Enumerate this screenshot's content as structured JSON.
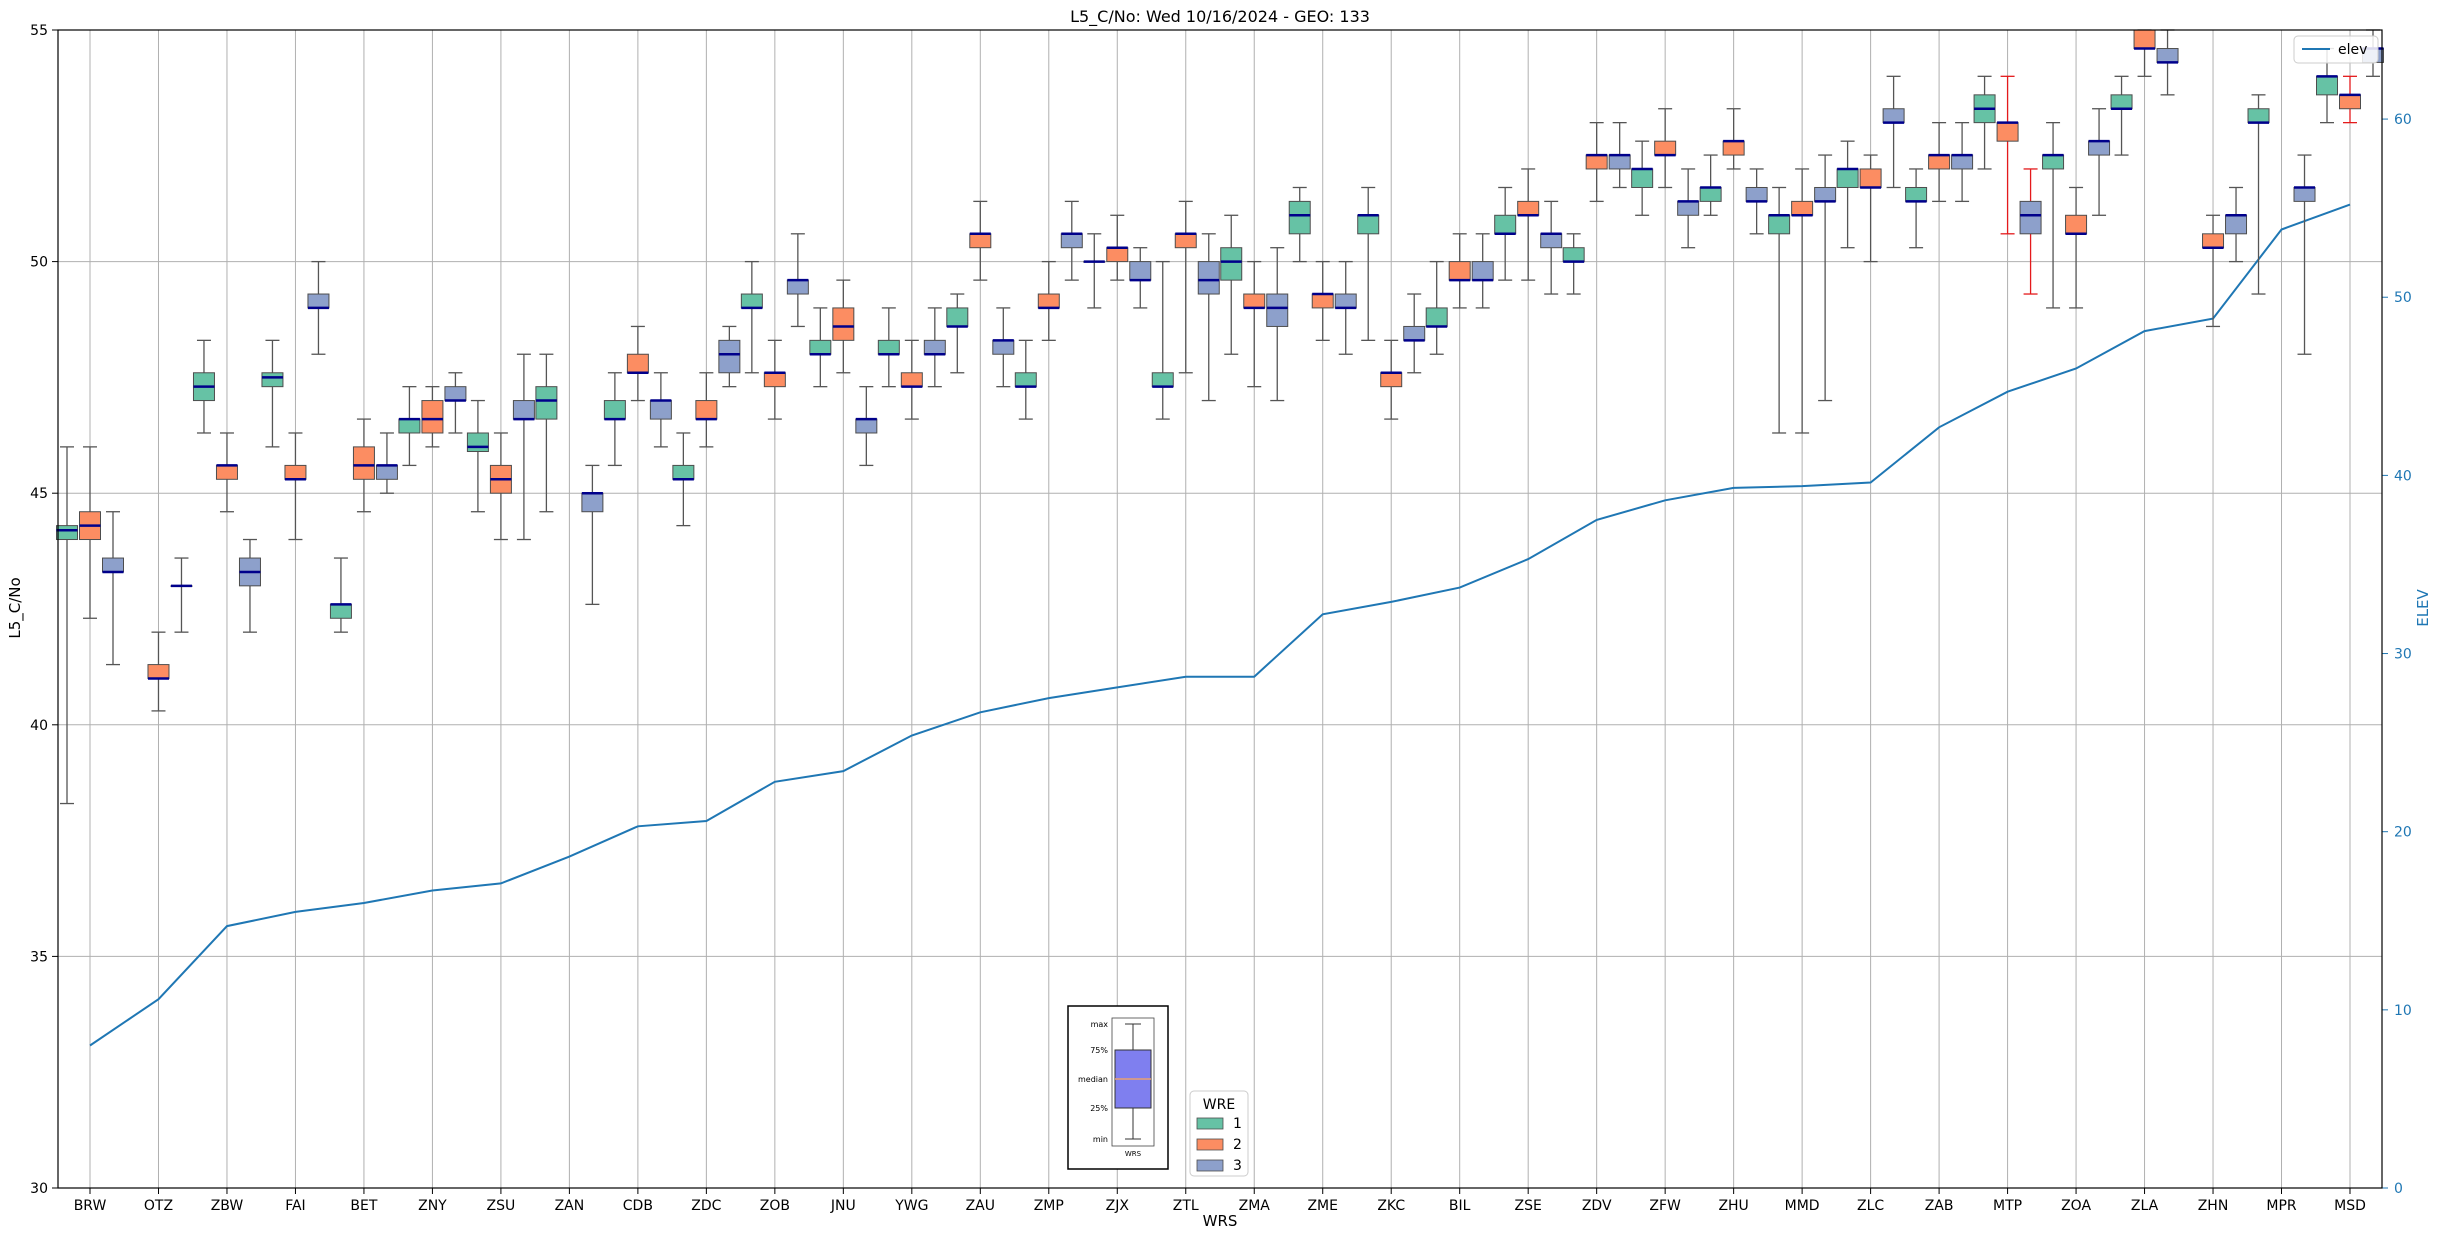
{
  "chart_data": {
    "type": "box",
    "title": "L5_C/No: Wed 10/16/2024 - GEO: 133",
    "xlabel": "WRS",
    "ylabel": "L5_C/No",
    "y2label": "ELEV",
    "ylim": [
      30,
      55
    ],
    "y2lim": [
      0,
      65
    ],
    "yticks": [
      30,
      35,
      40,
      45,
      50,
      55
    ],
    "y2ticks": [
      0,
      10,
      20,
      30,
      40,
      50,
      60
    ],
    "grid": true,
    "colors": {
      "wre1": "#66c2a5",
      "wre2": "#fc8d62",
      "wre3": "#8da0cb",
      "elev_line": "#1f77b4",
      "median": "#00008b",
      "whisker": "#555555",
      "whisker_alert": "#e41a1c",
      "y2_axis": "#1f77b4",
      "inset_box": "#7f7fef",
      "inset_median": "#e8a070"
    },
    "categories": [
      "BRW",
      "OTZ",
      "ZBW",
      "FAI",
      "BET",
      "ZNY",
      "ZSU",
      "ZAN",
      "CDB",
      "ZDC",
      "ZOB",
      "JNU",
      "YWG",
      "ZAU",
      "ZMP",
      "ZJX",
      "ZTL",
      "ZMA",
      "ZME",
      "ZKC",
      "BIL",
      "ZSE",
      "ZDV",
      "ZFW",
      "ZHU",
      "MMD",
      "ZLC",
      "ZAB",
      "MTP",
      "ZOA",
      "ZLA",
      "ZHN",
      "MPR",
      "MSD"
    ],
    "elev": {
      "name": "elev",
      "values": [
        8.0,
        10.6,
        14.7,
        15.5,
        16.0,
        16.7,
        17.1,
        18.6,
        20.3,
        20.6,
        22.8,
        23.4,
        25.4,
        26.7,
        27.5,
        28.1,
        28.7,
        28.7,
        32.2,
        32.9,
        33.7,
        35.3,
        37.5,
        38.6,
        39.3,
        39.4,
        39.6,
        42.7,
        44.7,
        46.0,
        48.1,
        48.8,
        53.8,
        55.2
      ]
    },
    "series": [
      {
        "name": "1",
        "boxes": [
          {
            "cat": "BRW",
            "min": 38.3,
            "q1": 44.0,
            "median": 44.2,
            "q3": 44.3,
            "max": 46.0
          },
          {
            "cat": "ZBW",
            "min": 46.3,
            "q1": 47.0,
            "median": 47.3,
            "q3": 47.6,
            "max": 48.3
          },
          {
            "cat": "FAI",
            "min": 46.0,
            "q1": 47.3,
            "median": 47.5,
            "q3": 47.6,
            "max": 48.3
          },
          {
            "cat": "BET",
            "min": 42.0,
            "q1": 42.3,
            "median": 42.6,
            "q3": 42.6,
            "max": 43.6
          },
          {
            "cat": "ZNY",
            "min": 45.6,
            "q1": 46.3,
            "median": 46.6,
            "q3": 46.6,
            "max": 47.3
          },
          {
            "cat": "ZSU",
            "min": 44.6,
            "q1": 45.9,
            "median": 46.0,
            "q3": 46.3,
            "max": 47.0
          },
          {
            "cat": "ZAN",
            "min": 44.6,
            "q1": 46.6,
            "median": 47.0,
            "q3": 47.3,
            "max": 48.0
          },
          {
            "cat": "CDB",
            "min": 45.6,
            "q1": 46.6,
            "median": 46.6,
            "q3": 47.0,
            "max": 47.6
          },
          {
            "cat": "ZDC",
            "min": 44.3,
            "q1": 45.3,
            "median": 45.3,
            "q3": 45.6,
            "max": 46.3
          },
          {
            "cat": "ZOB",
            "min": 47.6,
            "q1": 49.0,
            "median": 49.0,
            "q3": 49.3,
            "max": 50.0
          },
          {
            "cat": "JNU",
            "min": 47.3,
            "q1": 48.0,
            "median": 48.0,
            "q3": 48.3,
            "max": 49.0
          },
          {
            "cat": "YWG",
            "min": 47.3,
            "q1": 48.0,
            "median": 48.0,
            "q3": 48.3,
            "max": 49.0
          },
          {
            "cat": "ZAU",
            "min": 47.6,
            "q1": 48.6,
            "median": 48.6,
            "q3": 49.0,
            "max": 49.3
          },
          {
            "cat": "ZMP",
            "min": 46.6,
            "q1": 47.3,
            "median": 47.3,
            "q3": 47.6,
            "max": 48.3
          },
          {
            "cat": "ZJX",
            "min": 49.0,
            "q1": 50.0,
            "median": 50.0,
            "q3": 50.0,
            "max": 50.6
          },
          {
            "cat": "ZTL",
            "min": 46.6,
            "q1": 47.3,
            "median": 47.3,
            "q3": 47.6,
            "max": 50.0
          },
          {
            "cat": "ZMA",
            "min": 48.0,
            "q1": 49.6,
            "median": 50.0,
            "q3": 50.3,
            "max": 51.0
          },
          {
            "cat": "ZME",
            "min": 50.0,
            "q1": 50.6,
            "median": 51.0,
            "q3": 51.3,
            "max": 51.6
          },
          {
            "cat": "ZKC",
            "min": 48.3,
            "q1": 50.6,
            "median": 51.0,
            "q3": 51.0,
            "max": 51.6
          },
          {
            "cat": "BIL",
            "min": 48.0,
            "q1": 48.6,
            "median": 48.6,
            "q3": 49.0,
            "max": 50.0
          },
          {
            "cat": "ZSE",
            "min": 49.6,
            "q1": 50.6,
            "median": 50.6,
            "q3": 51.0,
            "max": 51.6
          },
          {
            "cat": "ZDV",
            "min": 49.3,
            "q1": 50.0,
            "median": 50.0,
            "q3": 50.3,
            "max": 50.6
          },
          {
            "cat": "ZFW",
            "min": 51.0,
            "q1": 51.6,
            "median": 52.0,
            "q3": 52.0,
            "max": 52.6
          },
          {
            "cat": "ZHU",
            "min": 51.0,
            "q1": 51.3,
            "median": 51.6,
            "q3": 51.6,
            "max": 52.3
          },
          {
            "cat": "MMD",
            "min": 46.3,
            "q1": 50.6,
            "median": 51.0,
            "q3": 51.0,
            "max": 51.6
          },
          {
            "cat": "ZLC",
            "min": 50.3,
            "q1": 51.6,
            "median": 52.0,
            "q3": 52.0,
            "max": 52.6
          },
          {
            "cat": "ZAB",
            "min": 50.3,
            "q1": 51.3,
            "median": 51.3,
            "q3": 51.6,
            "max": 52.0
          },
          {
            "cat": "MTP",
            "min": 52.0,
            "q1": 53.0,
            "median": 53.3,
            "q3": 53.6,
            "max": 54.0
          },
          {
            "cat": "ZOA",
            "min": 49.0,
            "q1": 52.0,
            "median": 52.3,
            "q3": 52.3,
            "max": 53.0
          },
          {
            "cat": "ZLA",
            "min": 52.3,
            "q1": 53.3,
            "median": 53.3,
            "q3": 53.6,
            "max": 54.0
          },
          {
            "cat": "MPR",
            "min": 49.3,
            "q1": 53.0,
            "median": 53.0,
            "q3": 53.3,
            "max": 53.6
          },
          {
            "cat": "MSD",
            "min": 53.0,
            "q1": 53.6,
            "median": 54.0,
            "q3": 54.0,
            "max": 54.6
          }
        ]
      },
      {
        "name": "2",
        "boxes": [
          {
            "cat": "BRW",
            "min": 42.3,
            "q1": 44.0,
            "median": 44.3,
            "q3": 44.6,
            "max": 46.0
          },
          {
            "cat": "OTZ",
            "min": 40.3,
            "q1": 41.0,
            "median": 41.0,
            "q3": 41.3,
            "max": 42.0
          },
          {
            "cat": "ZBW",
            "min": 44.6,
            "q1": 45.3,
            "median": 45.6,
            "q3": 45.6,
            "max": 46.3
          },
          {
            "cat": "FAI",
            "min": 44.0,
            "q1": 45.3,
            "median": 45.3,
            "q3": 45.6,
            "max": 46.3
          },
          {
            "cat": "BET",
            "min": 44.6,
            "q1": 45.3,
            "median": 45.6,
            "q3": 46.0,
            "max": 46.6
          },
          {
            "cat": "ZNY",
            "min": 46.0,
            "q1": 46.3,
            "median": 46.6,
            "q3": 47.0,
            "max": 47.3
          },
          {
            "cat": "ZSU",
            "min": 44.0,
            "q1": 45.0,
            "median": 45.3,
            "q3": 45.6,
            "max": 46.3
          },
          {
            "cat": "CDB",
            "min": 47.0,
            "q1": 47.6,
            "median": 47.6,
            "q3": 48.0,
            "max": 48.6
          },
          {
            "cat": "ZDC",
            "min": 46.0,
            "q1": 46.6,
            "median": 46.6,
            "q3": 47.0,
            "max": 47.6
          },
          {
            "cat": "ZOB",
            "min": 46.6,
            "q1": 47.3,
            "median": 47.6,
            "q3": 47.6,
            "max": 48.3
          },
          {
            "cat": "JNU",
            "min": 47.6,
            "q1": 48.3,
            "median": 48.6,
            "q3": 49.0,
            "max": 49.6
          },
          {
            "cat": "YWG",
            "min": 46.6,
            "q1": 47.3,
            "median": 47.3,
            "q3": 47.6,
            "max": 48.3
          },
          {
            "cat": "ZAU",
            "min": 49.6,
            "q1": 50.3,
            "median": 50.6,
            "q3": 50.6,
            "max": 51.3
          },
          {
            "cat": "ZMP",
            "min": 48.3,
            "q1": 49.0,
            "median": 49.0,
            "q3": 49.3,
            "max": 50.0
          },
          {
            "cat": "ZJX",
            "min": 49.6,
            "q1": 50.0,
            "median": 50.3,
            "q3": 50.3,
            "max": 51.0
          },
          {
            "cat": "ZTL",
            "min": 47.6,
            "q1": 50.3,
            "median": 50.6,
            "q3": 50.6,
            "max": 51.3
          },
          {
            "cat": "ZMA",
            "min": 47.3,
            "q1": 49.0,
            "median": 49.0,
            "q3": 49.3,
            "max": 50.0
          },
          {
            "cat": "ZME",
            "min": 48.3,
            "q1": 49.0,
            "median": 49.3,
            "q3": 49.3,
            "max": 50.0
          },
          {
            "cat": "ZKC",
            "min": 46.6,
            "q1": 47.3,
            "median": 47.6,
            "q3": 47.6,
            "max": 48.3
          },
          {
            "cat": "BIL",
            "min": 49.0,
            "q1": 49.6,
            "median": 49.6,
            "q3": 50.0,
            "max": 50.6
          },
          {
            "cat": "ZSE",
            "min": 49.6,
            "q1": 51.0,
            "median": 51.0,
            "q3": 51.3,
            "max": 52.0
          },
          {
            "cat": "ZDV",
            "min": 51.3,
            "q1": 52.0,
            "median": 52.3,
            "q3": 52.3,
            "max": 53.0
          },
          {
            "cat": "ZFW",
            "min": 51.6,
            "q1": 52.3,
            "median": 52.3,
            "q3": 52.6,
            "max": 53.3
          },
          {
            "cat": "ZHU",
            "min": 52.0,
            "q1": 52.3,
            "median": 52.6,
            "q3": 52.6,
            "max": 53.3
          },
          {
            "cat": "MMD",
            "min": 46.3,
            "q1": 51.0,
            "median": 51.0,
            "q3": 51.3,
            "max": 52.0
          },
          {
            "cat": "ZLC",
            "min": 50.0,
            "q1": 51.6,
            "median": 51.6,
            "q3": 52.0,
            "max": 52.3
          },
          {
            "cat": "ZAB",
            "min": 51.3,
            "q1": 52.0,
            "median": 52.3,
            "q3": 52.3,
            "max": 53.0
          },
          {
            "cat": "MTP",
            "min": 50.6,
            "q1": 52.6,
            "median": 53.0,
            "q3": 53.0,
            "max": 54.0,
            "alert": true
          },
          {
            "cat": "ZOA",
            "min": 49.0,
            "q1": 50.6,
            "median": 50.6,
            "q3": 51.0,
            "max": 51.6
          },
          {
            "cat": "ZLA",
            "min": 54.0,
            "q1": 54.6,
            "median": 54.6,
            "q3": 55.0,
            "max": 55.0
          },
          {
            "cat": "ZHN",
            "min": 48.6,
            "q1": 50.3,
            "median": 50.3,
            "q3": 50.6,
            "max": 51.0
          },
          {
            "cat": "MSD",
            "min": 53.0,
            "q1": 53.3,
            "median": 53.6,
            "q3": 53.6,
            "max": 54.0,
            "alert": true
          }
        ]
      },
      {
        "name": "3",
        "boxes": [
          {
            "cat": "BRW",
            "min": 41.3,
            "q1": 43.3,
            "median": 43.3,
            "q3": 43.6,
            "max": 44.6
          },
          {
            "cat": "OTZ",
            "min": 42.0,
            "q1": 43.0,
            "median": 43.0,
            "q3": 43.0,
            "max": 43.6
          },
          {
            "cat": "ZBW",
            "min": 42.0,
            "q1": 43.0,
            "median": 43.3,
            "q3": 43.6,
            "max": 44.0
          },
          {
            "cat": "FAI",
            "min": 48.0,
            "q1": 49.0,
            "median": 49.0,
            "q3": 49.3,
            "max": 50.0
          },
          {
            "cat": "BET",
            "min": 45.0,
            "q1": 45.3,
            "median": 45.6,
            "q3": 45.6,
            "max": 46.3
          },
          {
            "cat": "ZNY",
            "min": 46.3,
            "q1": 47.0,
            "median": 47.0,
            "q3": 47.3,
            "max": 47.6
          },
          {
            "cat": "ZSU",
            "min": 44.0,
            "q1": 46.6,
            "median": 46.6,
            "q3": 47.0,
            "max": 48.0
          },
          {
            "cat": "ZAN",
            "min": 42.6,
            "q1": 44.6,
            "median": 45.0,
            "q3": 45.0,
            "max": 45.6
          },
          {
            "cat": "CDB",
            "min": 46.0,
            "q1": 46.6,
            "median": 47.0,
            "q3": 47.0,
            "max": 47.6
          },
          {
            "cat": "ZDC",
            "min": 47.3,
            "q1": 47.6,
            "median": 48.0,
            "q3": 48.3,
            "max": 48.6
          },
          {
            "cat": "ZOB",
            "min": 48.6,
            "q1": 49.3,
            "median": 49.6,
            "q3": 49.6,
            "max": 50.6
          },
          {
            "cat": "JNU",
            "min": 45.6,
            "q1": 46.3,
            "median": 46.6,
            "q3": 46.6,
            "max": 47.3
          },
          {
            "cat": "YWG",
            "min": 47.3,
            "q1": 48.0,
            "median": 48.0,
            "q3": 48.3,
            "max": 49.0
          },
          {
            "cat": "ZAU",
            "min": 47.3,
            "q1": 48.0,
            "median": 48.3,
            "q3": 48.3,
            "max": 49.0
          },
          {
            "cat": "ZMP",
            "min": 49.6,
            "q1": 50.3,
            "median": 50.6,
            "q3": 50.6,
            "max": 51.3
          },
          {
            "cat": "ZJX",
            "min": 49.0,
            "q1": 49.6,
            "median": 49.6,
            "q3": 50.0,
            "max": 50.3
          },
          {
            "cat": "ZTL",
            "min": 47.0,
            "q1": 49.3,
            "median": 49.6,
            "q3": 50.0,
            "max": 50.6
          },
          {
            "cat": "ZMA",
            "min": 47.0,
            "q1": 48.6,
            "median": 49.0,
            "q3": 49.3,
            "max": 50.3
          },
          {
            "cat": "ZME",
            "min": 48.0,
            "q1": 49.0,
            "median": 49.0,
            "q3": 49.3,
            "max": 50.0
          },
          {
            "cat": "ZKC",
            "min": 47.6,
            "q1": 48.3,
            "median": 48.3,
            "q3": 48.6,
            "max": 49.3
          },
          {
            "cat": "BIL",
            "min": 49.0,
            "q1": 49.6,
            "median": 49.6,
            "q3": 50.0,
            "max": 50.6
          },
          {
            "cat": "ZSE",
            "min": 49.3,
            "q1": 50.3,
            "median": 50.6,
            "q3": 50.6,
            "max": 51.3
          },
          {
            "cat": "ZDV",
            "min": 51.6,
            "q1": 52.0,
            "median": 52.3,
            "q3": 52.3,
            "max": 53.0
          },
          {
            "cat": "ZFW",
            "min": 50.3,
            "q1": 51.0,
            "median": 51.3,
            "q3": 51.3,
            "max": 52.0
          },
          {
            "cat": "ZHU",
            "min": 50.6,
            "q1": 51.3,
            "median": 51.3,
            "q3": 51.6,
            "max": 52.0
          },
          {
            "cat": "MMD",
            "min": 47.0,
            "q1": 51.3,
            "median": 51.3,
            "q3": 51.6,
            "max": 52.3
          },
          {
            "cat": "ZLC",
            "min": 51.6,
            "q1": 53.0,
            "median": 53.0,
            "q3": 53.3,
            "max": 54.0
          },
          {
            "cat": "ZAB",
            "min": 51.3,
            "q1": 52.0,
            "median": 52.3,
            "q3": 52.3,
            "max": 53.0
          },
          {
            "cat": "MTP",
            "min": 49.3,
            "q1": 50.6,
            "median": 51.0,
            "q3": 51.3,
            "max": 52.0,
            "alert": true
          },
          {
            "cat": "ZOA",
            "min": 51.0,
            "q1": 52.3,
            "median": 52.6,
            "q3": 52.6,
            "max": 53.3
          },
          {
            "cat": "ZLA",
            "min": 53.6,
            "q1": 54.3,
            "median": 54.3,
            "q3": 54.6,
            "max": 55.0
          },
          {
            "cat": "ZHN",
            "min": 50.0,
            "q1": 50.6,
            "median": 51.0,
            "q3": 51.0,
            "max": 51.6
          },
          {
            "cat": "MPR",
            "min": 48.0,
            "q1": 51.3,
            "median": 51.6,
            "q3": 51.6,
            "max": 52.3
          },
          {
            "cat": "MSD",
            "min": 54.0,
            "q1": 54.3,
            "median": 54.6,
            "q3": 54.6,
            "max": 55.0
          }
        ]
      }
    ],
    "legend_wre": {
      "title": "WRE",
      "items": [
        "1",
        "2",
        "3"
      ]
    },
    "legend_elev": {
      "items": [
        "elev"
      ]
    },
    "inset": {
      "labels": [
        "max",
        "75%",
        "median",
        "25%",
        "min"
      ],
      "xlabel": "WRS"
    }
  }
}
